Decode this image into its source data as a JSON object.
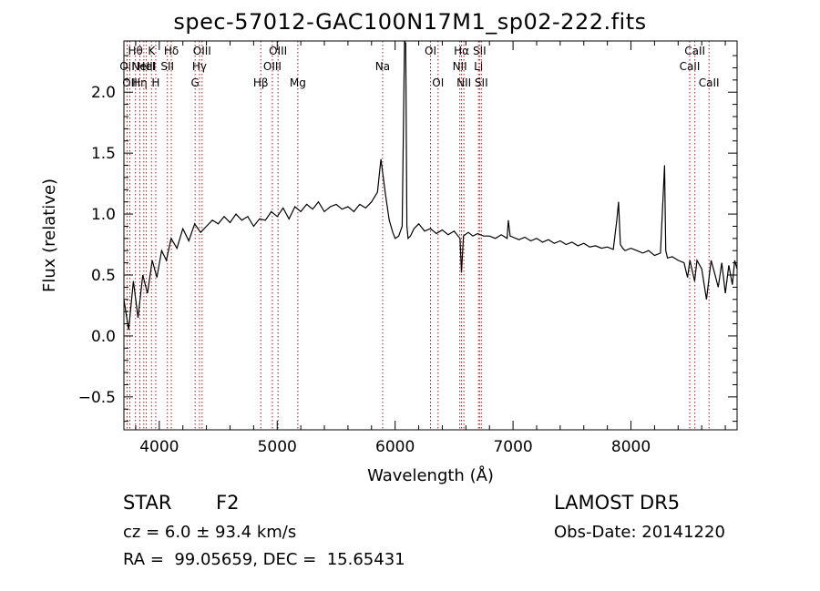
{
  "chart_data": {
    "type": "line",
    "title": "spec-57012-GAC100N17M1_sp02-222.fits",
    "xlabel": "Wavelength (Å)",
    "ylabel": "Flux (relative)",
    "xlim": [
      3700,
      8900
    ],
    "ylim": [
      -0.77,
      2.42
    ],
    "x_ticks": [
      4000,
      5000,
      6000,
      7000,
      8000
    ],
    "y_ticks": [
      -0.5,
      0.0,
      0.5,
      1.0,
      1.5,
      2.0
    ],
    "x_tick_labels": [
      "4000",
      "5000",
      "6000",
      "7000",
      "8000"
    ],
    "y_tick_labels": [
      "−0.5",
      "0.0",
      "0.5",
      "1.0",
      "1.5",
      "2.0"
    ],
    "line_color": "#000000",
    "marker_color": "#a02020",
    "grid": false,
    "series": [
      {
        "x": [
          3700,
          3740,
          3780,
          3820,
          3860,
          3900,
          3940,
          3980,
          4020,
          4060,
          4100,
          4150,
          4200,
          4250,
          4300,
          4350,
          4400,
          4450,
          4500,
          4550,
          4600,
          4650,
          4700,
          4750,
          4800,
          4850,
          4900,
          4950,
          5000,
          5050,
          5100,
          5150,
          5200,
          5250,
          5300,
          5350,
          5400,
          5450,
          5500,
          5550,
          5600,
          5650,
          5700,
          5750,
          5800,
          5850,
          5880,
          5900,
          5920,
          5950,
          5980,
          6000,
          6030,
          6060,
          6080,
          6090,
          6100,
          6110,
          6130,
          6160,
          6200,
          6250,
          6300,
          6350,
          6400,
          6450,
          6500,
          6550,
          6563,
          6580,
          6620,
          6660,
          6700,
          6750,
          6800,
          6850,
          6900,
          6950,
          6960,
          6975,
          7000,
          7050,
          7100,
          7150,
          7200,
          7250,
          7300,
          7350,
          7400,
          7450,
          7500,
          7550,
          7600,
          7650,
          7700,
          7750,
          7800,
          7850,
          7880,
          7895,
          7910,
          7930,
          7950,
          8000,
          8050,
          8100,
          8150,
          8200,
          8250,
          8285,
          8295,
          8310,
          8350,
          8400,
          8450,
          8480,
          8500,
          8540,
          8560,
          8600,
          8640,
          8680,
          8700,
          8740,
          8770,
          8800,
          8830,
          8860,
          8880,
          8900
        ],
        "y": [
          0.3,
          0.05,
          0.45,
          0.15,
          0.5,
          0.35,
          0.62,
          0.48,
          0.7,
          0.62,
          0.8,
          0.72,
          0.88,
          0.78,
          0.92,
          0.85,
          0.9,
          0.95,
          0.92,
          0.98,
          0.93,
          1.0,
          0.95,
          0.98,
          0.9,
          0.96,
          0.95,
          1.02,
          0.98,
          1.05,
          0.96,
          1.06,
          1.02,
          1.08,
          1.04,
          1.1,
          1.02,
          1.06,
          1.08,
          1.04,
          1.06,
          1.02,
          1.08,
          1.05,
          1.1,
          1.18,
          1.45,
          1.3,
          1.15,
          0.95,
          0.85,
          0.8,
          0.82,
          0.9,
          2.42,
          2.4,
          0.9,
          0.8,
          0.82,
          0.88,
          0.92,
          0.86,
          0.88,
          0.84,
          0.87,
          0.83,
          0.86,
          0.8,
          0.52,
          0.82,
          0.85,
          0.82,
          0.84,
          0.82,
          0.82,
          0.8,
          0.83,
          0.8,
          0.95,
          0.82,
          0.81,
          0.79,
          0.81,
          0.78,
          0.8,
          0.77,
          0.79,
          0.76,
          0.78,
          0.75,
          0.77,
          0.74,
          0.76,
          0.73,
          0.74,
          0.72,
          0.73,
          0.71,
          0.95,
          1.1,
          0.75,
          0.72,
          0.7,
          0.72,
          0.7,
          0.68,
          0.7,
          0.66,
          0.68,
          1.4,
          0.7,
          0.64,
          0.65,
          0.62,
          0.6,
          0.48,
          0.62,
          0.45,
          0.62,
          0.55,
          0.3,
          0.62,
          0.55,
          0.4,
          0.6,
          0.35,
          0.58,
          0.42,
          0.62,
          0.55
        ]
      }
    ],
    "markers": [
      {
        "x": 3727,
        "label": "OII",
        "row": 1
      },
      {
        "x": 3750,
        "label": "OII",
        "row": 2
      },
      {
        "x": 3798,
        "label": "Hθ",
        "row": 0
      },
      {
        "x": 3835,
        "label": "Hη",
        "row": 2
      },
      {
        "x": 3869,
        "label": "NeIII",
        "row": 1
      },
      {
        "x": 3889,
        "label": "HeI",
        "row": 1
      },
      {
        "x": 3934,
        "label": "K",
        "row": 0
      },
      {
        "x": 3970,
        "label": "H",
        "row": 2
      },
      {
        "x": 4069,
        "label": "SII",
        "row": 1
      },
      {
        "x": 4102,
        "label": "Hδ",
        "row": 0
      },
      {
        "x": 4304,
        "label": "G",
        "row": 2
      },
      {
        "x": 4341,
        "label": "Hγ",
        "row": 1
      },
      {
        "x": 4363,
        "label": "OIII",
        "row": 0
      },
      {
        "x": 4861,
        "label": "Hβ",
        "row": 2
      },
      {
        "x": 4959,
        "label": "OIII",
        "row": 1
      },
      {
        "x": 5007,
        "label": "OIII",
        "row": 0
      },
      {
        "x": 5175,
        "label": "Mg",
        "row": 2
      },
      {
        "x": 5894,
        "label": "Na",
        "row": 1
      },
      {
        "x": 6300,
        "label": "OI",
        "row": 0
      },
      {
        "x": 6364,
        "label": "OI",
        "row": 2
      },
      {
        "x": 6548,
        "label": "NII",
        "row": 1
      },
      {
        "x": 6563,
        "label": "Hα",
        "row": 0
      },
      {
        "x": 6583,
        "label": "NII",
        "row": 2
      },
      {
        "x": 6707,
        "label": "Li",
        "row": 1
      },
      {
        "x": 6716,
        "label": "SII",
        "row": 0
      },
      {
        "x": 6731,
        "label": "SII",
        "row": 2
      },
      {
        "x": 8498,
        "label": "CaII",
        "row": 1
      },
      {
        "x": 8542,
        "label": "CaII",
        "row": 0
      },
      {
        "x": 8662,
        "label": "CaII",
        "row": 2
      }
    ]
  },
  "info": {
    "class": "STAR",
    "subclass": "F2",
    "redshift": "cz = 6.0 ± 93.4 km/s",
    "coords": "RA =  99.05659, DEC =  15.65431",
    "survey": "LAMOST DR5",
    "obs_date": "Obs-Date: 20141220"
  }
}
